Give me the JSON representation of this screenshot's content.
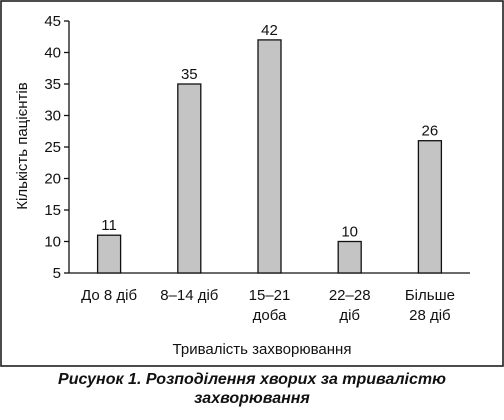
{
  "chart_data": {
    "type": "bar",
    "categories": [
      [
        "До 8 діб"
      ],
      [
        "8–14 діб"
      ],
      [
        "15–21",
        "доба"
      ],
      [
        "22–28",
        "діб"
      ],
      [
        "Більше",
        "28 діб"
      ]
    ],
    "values": [
      11,
      35,
      42,
      10,
      26
    ],
    "data_labels": [
      "11",
      "35",
      "42",
      "10",
      "26"
    ],
    "xlabel": "Тривалість захворювання",
    "ylabel": "Кількість пацієнтів",
    "ylim": [
      5,
      45
    ],
    "yticks": [
      "5",
      "10",
      "15",
      "20",
      "25",
      "30",
      "35",
      "40",
      "45"
    ],
    "grid": false,
    "bar_color": "#c4c4c4",
    "bar_edge_color": "#111111"
  },
  "caption": {
    "line1": "Рисунок 1. Розподілення хворих за тривалістю",
    "line2": "захворювання"
  }
}
